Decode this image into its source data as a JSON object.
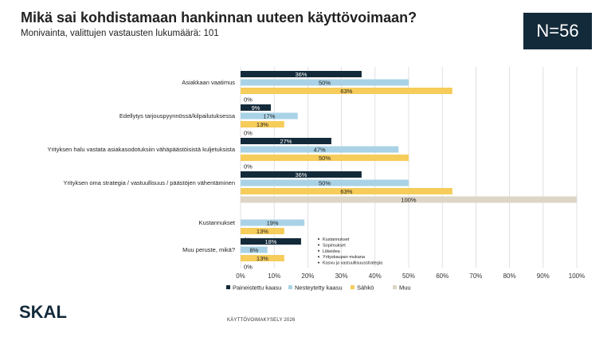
{
  "page": {
    "title": "Mikä sai kohdistamaan hankinnan uuteen käyttövoimaan?",
    "subtitle": "Monivainta, valittujen vastausten lukumäärä: 101",
    "n_badge": "N=56",
    "footer": "KÄYTTÖVOIMAKYSELY 2026",
    "logo_text": "SKAL"
  },
  "colors": {
    "paineistettu": "#132a3a",
    "nesteytetty": "#a9d2e6",
    "sahko": "#f6cc5a",
    "muu": "#ddd5c6",
    "grid": "#d9d9d9",
    "badge_bg": "#132a3a"
  },
  "chart_data": {
    "type": "bar",
    "orientation": "horizontal",
    "categories": [
      "Asiakkaan vaatimus",
      "Edellytys tarjouspyynnössä/kilpailutuksessa",
      "Yrityksen halu vastata asiakasodotuksiin vähäpäästöisistä kuljetuksista",
      "Yrityksen oma strategia / vastuullisuus / päästöjen vähentäminen",
      "Kustannukset",
      "Muu peruste, mikä?"
    ],
    "series": [
      {
        "name": "Paineistettu kaasu",
        "values": [
          36,
          9,
          27,
          36,
          null,
          18
        ],
        "labels": [
          "36%",
          "9%",
          "27%",
          "36%",
          "",
          "18%"
        ]
      },
      {
        "name": "Nesteytetty kaasu",
        "values": [
          50,
          17,
          47,
          50,
          19,
          8
        ],
        "labels": [
          "50%",
          "17%",
          "47%",
          "50%",
          "19%",
          "8%"
        ]
      },
      {
        "name": "Sähkö",
        "values": [
          63,
          13,
          50,
          63,
          13,
          13
        ],
        "labels": [
          "63%",
          "13%",
          "50%",
          "63%",
          "13%",
          "13%"
        ]
      },
      {
        "name": "Muu",
        "values": [
          0,
          0,
          0,
          100,
          0,
          0
        ],
        "labels": [
          "0%",
          "0%",
          "0%",
          "100%",
          "0%",
          "0%"
        ]
      }
    ],
    "xlim": [
      0,
      100
    ],
    "xticks": [
      "0%",
      "10%",
      "20%",
      "30%",
      "40%",
      "50%",
      "60%",
      "70%",
      "80%",
      "90%",
      "100%"
    ],
    "grid": true,
    "legend_position": "bottom",
    "annotation": {
      "category": "Muu peruste, mikä?",
      "items": [
        "Kustannukset",
        "Sopimukset",
        "Liikeidea",
        "Yrityskaupan mukana",
        "Kasvu ja vastuullisuusstrategia"
      ]
    }
  }
}
